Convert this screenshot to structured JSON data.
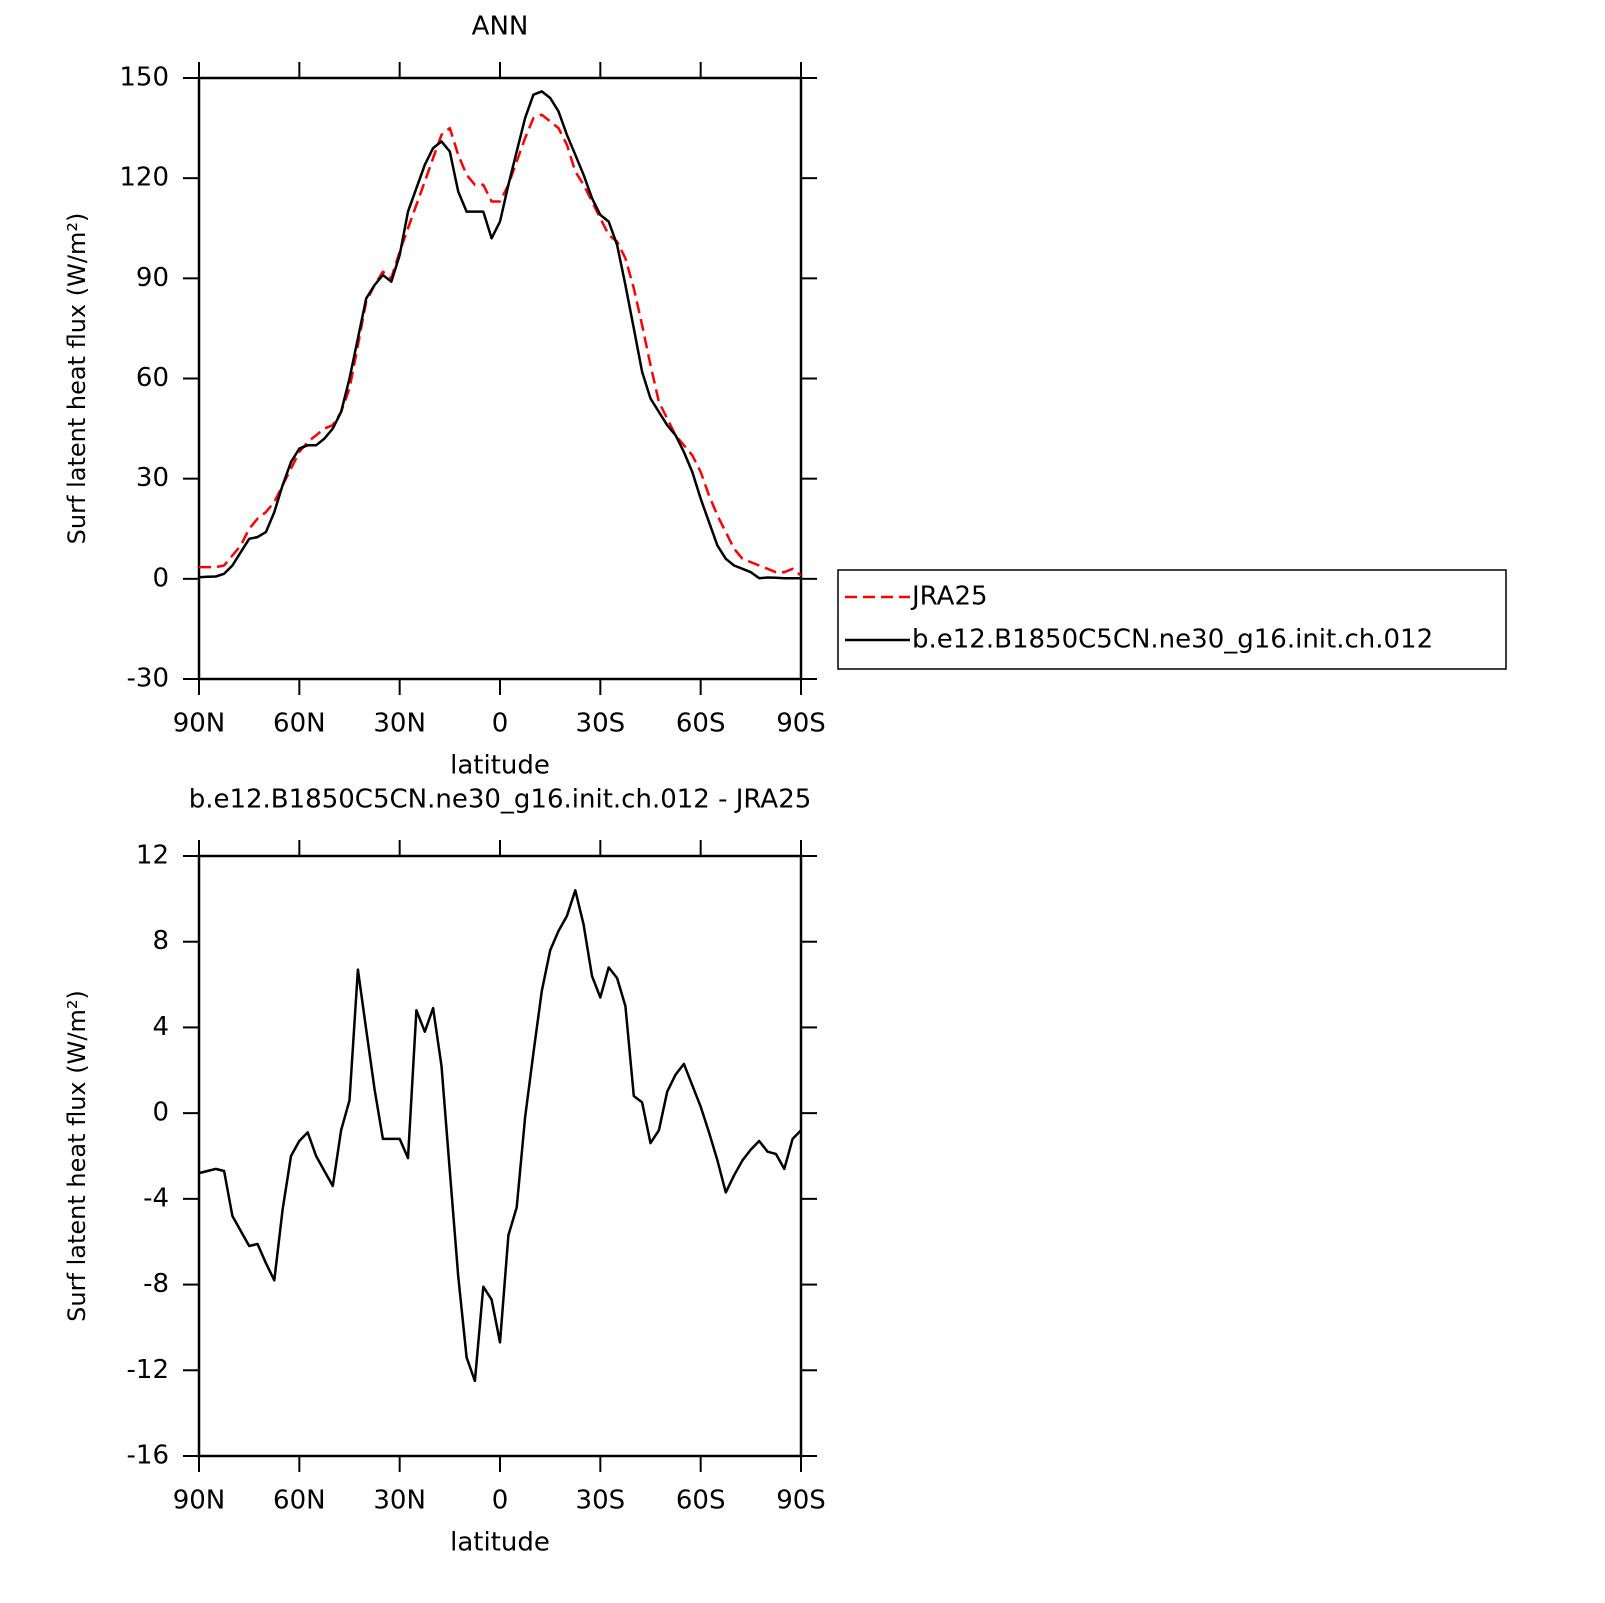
{
  "chart_data": [
    {
      "type": "line",
      "title": "ANN",
      "x_label": "latitude",
      "y_label": "Surf latent heat flux (W/m²)",
      "x": [
        90,
        87.5,
        85,
        82.5,
        80,
        77.5,
        75,
        72.5,
        70,
        67.5,
        65,
        62.5,
        60,
        57.5,
        55,
        52.5,
        50,
        47.5,
        45,
        42.5,
        40,
        37.5,
        35,
        32.5,
        30,
        27.5,
        25,
        22.5,
        20,
        17.5,
        15,
        12.5,
        10,
        7.5,
        5,
        2.5,
        0,
        -2.5,
        -5,
        -7.5,
        -10,
        -12.5,
        -15,
        -17.5,
        -20,
        -22.5,
        -25,
        -27.5,
        -30,
        -32.5,
        -35,
        -37.5,
        -40,
        -42.5,
        -45,
        -47.5,
        -50,
        -52.5,
        -55,
        -57.5,
        -60,
        -62.5,
        -65,
        -67.5,
        -70,
        -72.5,
        -75,
        -77.5,
        -80,
        -82.5,
        -85,
        -87.5,
        -90
      ],
      "xlim": [
        90,
        -90
      ],
      "xticks": [
        {
          "value": 90,
          "label": "90N"
        },
        {
          "value": 60,
          "label": "60N"
        },
        {
          "value": 30,
          "label": "30N"
        },
        0,
        {
          "value": -30,
          "label": "30S"
        },
        {
          "value": -60,
          "label": "60S"
        },
        {
          "value": -90,
          "label": "90S"
        }
      ],
      "ylim": [
        -30,
        150
      ],
      "yticks": [
        150,
        120,
        90,
        60,
        30,
        0,
        -30
      ],
      "legend": "outside-right",
      "series": [
        {
          "name": "JRA25",
          "color": "#ff0000",
          "line_style": "dashed",
          "values": [
            3.5,
            3.5,
            3.5,
            4,
            7,
            10,
            15,
            18,
            20,
            23,
            28,
            33,
            38,
            41,
            43,
            45,
            46,
            50,
            57,
            70,
            83,
            88,
            92,
            90,
            98,
            105,
            112,
            119,
            126,
            133,
            135,
            127,
            121,
            118,
            118,
            113,
            113,
            118,
            125,
            132,
            138,
            139,
            137,
            135,
            130,
            122,
            118,
            113,
            108,
            103,
            101,
            96,
            87,
            76,
            64,
            53,
            48,
            43,
            40,
            37,
            32,
            25,
            19,
            14,
            9,
            6,
            5,
            4,
            3,
            2,
            2,
            3,
            1
          ]
        },
        {
          "name": "b.e12.B1850C5CN.ne30_g16.init.ch.012",
          "color": "#000000",
          "line_style": "solid",
          "values": [
            0.5,
            0.6,
            0.7,
            1.5,
            4,
            8,
            12,
            12.5,
            14,
            20,
            28,
            35,
            39,
            40,
            40,
            42,
            45,
            50,
            60,
            72,
            84,
            88,
            91,
            89,
            97,
            110,
            117,
            124,
            129,
            131,
            128,
            116,
            110,
            110,
            110,
            102,
            107,
            118,
            128,
            138,
            145,
            146,
            144,
            140,
            133,
            127,
            121,
            114,
            109,
            107,
            100,
            88,
            75,
            62,
            54,
            50,
            46,
            43,
            38,
            32,
            24,
            17,
            10,
            6,
            4,
            3,
            2,
            0.2,
            0.4,
            0.3,
            0.2,
            0.2,
            0.2
          ]
        }
      ]
    },
    {
      "type": "line",
      "title": "b.e12.B1850C5CN.ne30_g16.init.ch.012 - JRA25",
      "x_label": "latitude",
      "y_label": "Surf latent heat flux (W/m²)",
      "x": [
        90,
        87.5,
        85,
        82.5,
        80,
        77.5,
        75,
        72.5,
        70,
        67.5,
        65,
        62.5,
        60,
        57.5,
        55,
        52.5,
        50,
        47.5,
        45,
        42.5,
        40,
        37.5,
        35,
        32.5,
        30,
        27.5,
        25,
        22.5,
        20,
        17.5,
        15,
        12.5,
        10,
        7.5,
        5,
        2.5,
        0,
        -2.5,
        -5,
        -7.5,
        -10,
        -12.5,
        -15,
        -17.5,
        -20,
        -22.5,
        -25,
        -27.5,
        -30,
        -32.5,
        -35,
        -37.5,
        -40,
        -42.5,
        -45,
        -47.5,
        -50,
        -52.5,
        -55,
        -57.5,
        -60,
        -62.5,
        -65,
        -67.5,
        -70,
        -72.5,
        -75,
        -77.5,
        -80,
        -82.5,
        -85,
        -87.5,
        -90
      ],
      "xlim": [
        90,
        -90
      ],
      "xticks": [
        {
          "value": 90,
          "label": "90N"
        },
        {
          "value": 60,
          "label": "60N"
        },
        {
          "value": 30,
          "label": "30N"
        },
        0,
        {
          "value": -30,
          "label": "30S"
        },
        {
          "value": -60,
          "label": "60S"
        },
        {
          "value": -90,
          "label": "90S"
        }
      ],
      "ylim": [
        -16,
        12
      ],
      "yticks": [
        12,
        8,
        4,
        0,
        -4,
        -8,
        -12,
        -16
      ],
      "color": "#000000",
      "values": [
        -2.8,
        -2.7,
        -2.6,
        -2.7,
        -4.8,
        -5.5,
        -6.2,
        -6.1,
        -7,
        -7.8,
        -4.5,
        -2,
        -1.3,
        -0.9,
        -2,
        -2.7,
        -3.4,
        -0.8,
        0.6,
        6.7,
        3.9,
        1.1,
        -1.2,
        -1.2,
        -1.2,
        -2.1,
        4.8,
        3.8,
        4.9,
        2.2,
        -2.7,
        -7.6,
        -11.4,
        -12.5,
        -8.1,
        -8.7,
        -10.7,
        -5.7,
        -4.4,
        -0.2,
        2.8,
        5.7,
        7.6,
        8.5,
        9.2,
        10.4,
        8.8,
        6.4,
        5.4,
        6.8,
        6.3,
        5,
        0.8,
        0.5,
        -1.4,
        -0.8,
        1,
        1.8,
        2.3,
        1.3,
        0.3,
        -0.9,
        -2.2,
        -3.7,
        -2.9,
        -2.2,
        -1.7,
        -1.3,
        -1.8,
        -1.9,
        -2.6,
        -1.2,
        -0.8
      ]
    }
  ]
}
